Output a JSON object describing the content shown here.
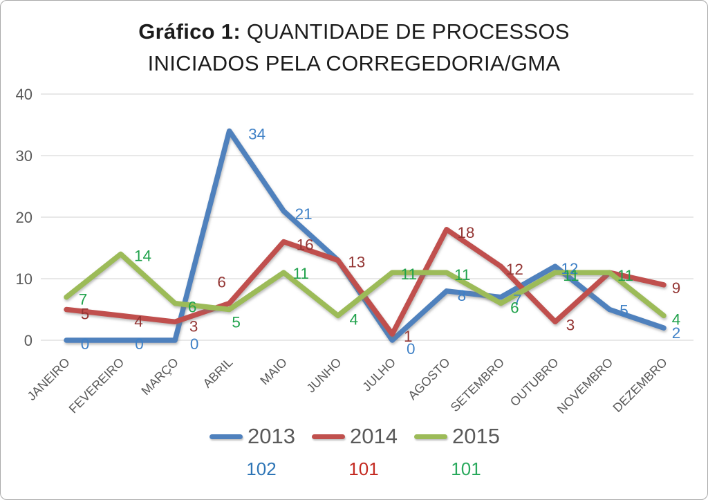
{
  "title": {
    "prefix": "Gráfico 1:",
    "line1_rest": "QUANTIDADE DE PROCESSOS",
    "line2": "INICIADOS PELA CORREGEDORIA/GMA",
    "full": "Gráfico 1: QUANTIDADE DE PROCESSOS INICIADOS PELA CORREGEDORIA/GMA"
  },
  "chart_data": {
    "type": "line",
    "title": "Gráfico 1: QUANTIDADE DE PROCESSOS INICIADOS PELA CORREGEDORIA/GMA",
    "categories": [
      "JANEIRO",
      "FEVEREIRO",
      "MARÇO",
      "ABRIL",
      "MAIO",
      "JUNHO",
      "JULHO",
      "AGOSTO",
      "SETEMBRO",
      "OUTUBRO",
      "NOVEMBRO",
      "DEZEMBRO"
    ],
    "yticks": [
      0,
      10,
      20,
      30,
      40
    ],
    "ylim": [
      0,
      40
    ],
    "grid": true,
    "legend_position": "bottom",
    "axis_text_color": "#595959",
    "gridline_color": "#d9d9d9",
    "series": [
      {
        "name": "2013",
        "color": "#4F81BD",
        "label_color": "#3E80C6",
        "total": "102",
        "total_color": "#2E75B6",
        "values": [
          0,
          0,
          0,
          34,
          21,
          13,
          0,
          8,
          7,
          12,
          5,
          2
        ],
        "label_offsets": [
          [
            27,
            5
          ],
          [
            27,
            5
          ],
          [
            28,
            5
          ],
          [
            40,
            4
          ],
          [
            29,
            4
          ],
          null,
          [
            27,
            12
          ],
          [
            22,
            6
          ],
          [
            24,
            4
          ],
          [
            21,
            3
          ],
          [
            21,
            1
          ],
          [
            18,
            7
          ]
        ]
      },
      {
        "name": "2014",
        "color": "#C0504D",
        "label_color": "#943634",
        "total": "101",
        "total_color": "#C42A21",
        "values": [
          5,
          4,
          3,
          6,
          16,
          13,
          1,
          18,
          12,
          3,
          11,
          9
        ],
        "label_offsets": [
          [
            27,
            6
          ],
          [
            26,
            8
          ],
          [
            27,
            6
          ],
          [
            -11,
            -31
          ],
          [
            31,
            4
          ],
          [
            27,
            2
          ],
          [
            23,
            3
          ],
          [
            28,
            4
          ],
          [
            20,
            4
          ],
          [
            22,
            4
          ],
          null,
          [
            18,
            4
          ]
        ]
      },
      {
        "name": "2015",
        "color": "#9CBB58",
        "label_color": "#21A24C",
        "total": "101",
        "total_color": "#28A95C",
        "values": [
          7,
          14,
          6,
          5,
          11,
          4,
          11,
          11,
          6,
          11,
          11,
          4
        ],
        "label_offsets": [
          [
            24,
            3
          ],
          [
            32,
            2
          ],
          [
            25,
            5
          ],
          [
            10,
            18
          ],
          [
            25,
            1
          ],
          [
            23,
            5
          ],
          [
            24,
            2
          ],
          [
            23,
            3
          ],
          [
            20,
            6
          ],
          [
            23,
            4
          ],
          [
            23,
            4
          ],
          [
            18,
            5
          ]
        ]
      }
    ]
  }
}
